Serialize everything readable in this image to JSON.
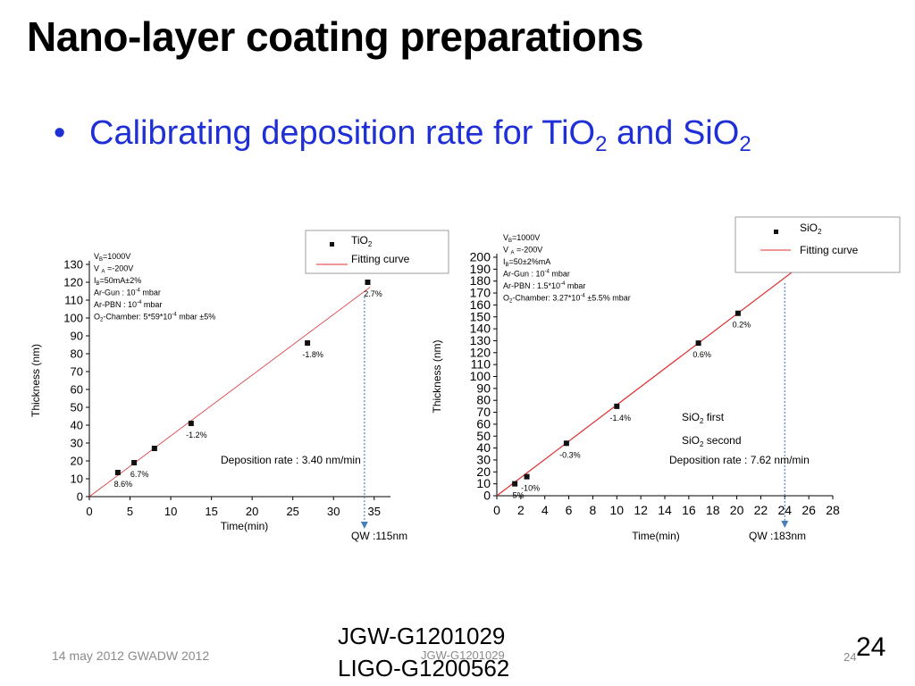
{
  "slide": {
    "title": "Nano-layer coating preparations",
    "bullet_glyph": "•",
    "bullet_text": "Calibrating deposition rate for TiO",
    "bullet_sub1": "2",
    "bullet_mid": " and SiO",
    "bullet_sub2": "2",
    "footer_left": "14 may 2012 GWADW 2012",
    "footer_mid": "JGW-G1201029",
    "footer_page_small": "24",
    "footer_page_big": "24",
    "doc_id_1": "JGW-G1201029",
    "doc_id_2": "LIGO-G1200562"
  },
  "chart_data": [
    {
      "type": "scatter",
      "name": "TiO2 calibration",
      "xlabel": "Time(min)",
      "ylabel": "Thickness (nm)",
      "xlim": [
        0,
        37
      ],
      "ylim": [
        0,
        130
      ],
      "xticks": [
        0,
        5,
        10,
        15,
        20,
        25,
        30,
        35
      ],
      "yticks": [
        0,
        10,
        20,
        30,
        40,
        50,
        60,
        70,
        80,
        90,
        100,
        110,
        120,
        130
      ],
      "legend": {
        "marker": "TiO2",
        "marker_base": "TiO",
        "marker_sub": "2",
        "line": "Fitting curve",
        "position": "top-right"
      },
      "points": [
        {
          "x": 3.5,
          "y": 13.5,
          "label": "8.6%"
        },
        {
          "x": 5.5,
          "y": 19,
          "label": "6.7%"
        },
        {
          "x": 8,
          "y": 27,
          "label": ""
        },
        {
          "x": 12.5,
          "y": 41,
          "label": "-1.2%"
        },
        {
          "x": 26.8,
          "y": 86,
          "label": "-1.8%"
        },
        {
          "x": 34.2,
          "y": 120,
          "label": "2.7%"
        }
      ],
      "fit": {
        "slope": 3.4,
        "x_range": [
          0,
          34.5
        ]
      },
      "conditions": [
        {
          "base": "V",
          "sub": "B",
          "sup": "",
          "rest": "=1000V"
        },
        {
          "base": "V ",
          "sub": "A",
          "sup": "",
          "rest": " =-200V"
        },
        {
          "base": " I",
          "sub": "B",
          "sup": "",
          "rest": "=50mA±2%"
        },
        {
          "base": "Ar-Gun : 10",
          "sub": "",
          "sup": "-4",
          "rest": " mbar"
        },
        {
          "base": "Ar-PBN : 10",
          "sub": "",
          "sup": "-4",
          "rest": " mbar"
        },
        {
          "base": "O",
          "sub": "2",
          "sup": "",
          "rest": "-Chamber: 5*59*10",
          "sup2": "-4",
          "rest2": " mbar ±5%"
        }
      ],
      "rate_text": "Deposition rate : 3.40 nm/min",
      "qw_text": "QW :115nm",
      "qw_x": 33.8
    },
    {
      "type": "scatter",
      "name": "SiO2 calibration",
      "xlabel": "Time(min)",
      "ylabel": "Thickness (nm)",
      "xlim": [
        0,
        28
      ],
      "ylim": [
        0,
        200
      ],
      "xticks": [
        0,
        2,
        4,
        6,
        8,
        10,
        12,
        14,
        16,
        18,
        20,
        22,
        24,
        26,
        28
      ],
      "yticks": [
        0,
        10,
        20,
        30,
        40,
        50,
        60,
        70,
        80,
        90,
        100,
        110,
        120,
        130,
        140,
        150,
        160,
        170,
        180,
        190,
        200
      ],
      "legend": {
        "marker": "SiO2",
        "marker_base": "SiO",
        "marker_sub": "2",
        "line": "Fitting curve",
        "position": "top-right"
      },
      "points": [
        {
          "x": 1.5,
          "y": 10,
          "label": "5%"
        },
        {
          "x": 2.5,
          "y": 16,
          "label": "-10%"
        },
        {
          "x": 5.8,
          "y": 44,
          "label": "-0.3%"
        },
        {
          "x": 10,
          "y": 75,
          "label": "-1.4%"
        },
        {
          "x": 16.8,
          "y": 128,
          "label": "0.6%"
        },
        {
          "x": 20.1,
          "y": 153,
          "label": "0.2%"
        }
      ],
      "fit": {
        "slope": 7.62,
        "x_range": [
          0,
          26
        ]
      },
      "conditions": [
        {
          "base": "V",
          "sub": "B",
          "sup": "",
          "rest": "=1000V"
        },
        {
          "base": "V ",
          "sub": "A",
          "sup": "",
          "rest": " =-200V"
        },
        {
          "base": " I",
          "sub": "B",
          "sup": "",
          "rest": "=50±2%mA"
        },
        {
          "base": "Ar-Gun : 10",
          "sub": "",
          "sup": "-4",
          "rest": " mbar"
        },
        {
          "base": "Ar-PBN : 1.5*10",
          "sub": "",
          "sup": "-4",
          "rest": " mbar"
        },
        {
          "base": "O",
          "sub": "2",
          "sup": "",
          "rest": "-Chamber: 3.27*10",
          "sup2": "-4",
          "rest2": " ±5.5% mbar"
        }
      ],
      "annotations": [
        {
          "base": "SiO",
          "sub": "2",
          "rest": " first"
        },
        {
          "base": "SiO",
          "sub": "2",
          "rest": " second"
        }
      ],
      "rate_text": "Deposition rate : 7.62 nm/min",
      "qw_text": "QW :183nm",
      "qw_x": 24
    }
  ]
}
